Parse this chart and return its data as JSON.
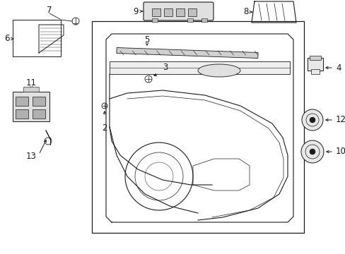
{
  "bg_color": "#ffffff",
  "line_color": "#1a1a1a",
  "figsize": [
    4.89,
    3.6
  ],
  "dpi": 100,
  "lw_main": 0.8,
  "lw_thin": 0.5,
  "fs_label": 8.5,
  "fs_number": 8.5
}
